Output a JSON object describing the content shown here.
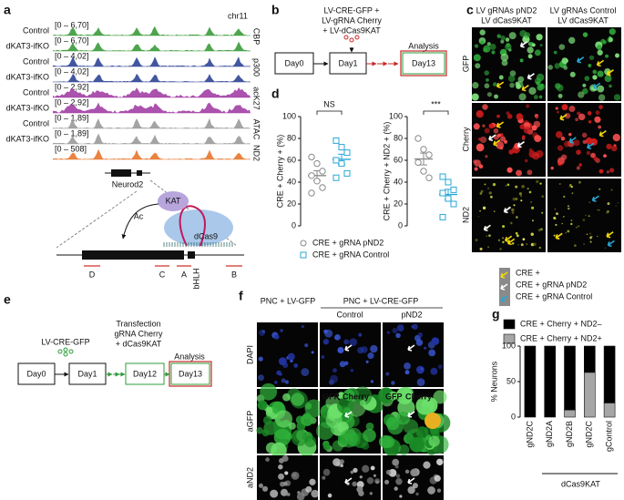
{
  "letters": [
    "a",
    "b",
    "c",
    "d",
    "e",
    "f",
    "g"
  ],
  "panel_a": {
    "region": "chr11",
    "tracks": [
      {
        "label": "Control",
        "range": "[0 – 6,70]"
      },
      {
        "label": "dKAT3-ifKO",
        "range": "[0 – 6,70]"
      },
      {
        "label": "Control",
        "range": "[0 – 4,02]"
      },
      {
        "label": "dKAT3-ifKO",
        "range": "[0 – 4,02]"
      },
      {
        "label": "Control",
        "range": "[0 – 2,92]"
      },
      {
        "label": "dKAT3-ifKO",
        "range": "[0 – 2,92]"
      },
      {
        "label": "Control",
        "range": "[0 – 1,89]"
      },
      {
        "label": "dKAT3-ifKO",
        "range": "[0 – 1,89]"
      },
      {
        "range": "[0 – 508]"
      }
    ],
    "marks": [
      "CBP",
      "p300",
      "acK27",
      "ATAC",
      "ND2"
    ],
    "gene": "Neurod2",
    "diagram": {
      "kat": "KAT",
      "ac": "Ac",
      "dcas9": "dCas9",
      "sites": [
        "D",
        "C",
        "A",
        "B"
      ],
      "domain": "bHLH"
    }
  },
  "panel_b": {
    "vectors": [
      "LV-CRE-GFP +",
      "LV-gRNA Cherry",
      "+ LV-dCas9KAT"
    ],
    "analysis": "Analysis",
    "days": [
      "Day0",
      "Day1",
      "Day13"
    ]
  },
  "panel_c": {
    "columns": [
      [
        "LV gRNAs pND2",
        "LV dCas9KAT"
      ],
      [
        "LV gRNAs Control",
        "LV dCas9KAT"
      ]
    ],
    "rows": [
      "GFP",
      "Cherry",
      "ND2"
    ],
    "legend": [
      "CRE +",
      "CRE + gRNA pND2",
      "CRE + gRNA Control"
    ]
  },
  "panel_e": {
    "vector": "LV-CRE-GFP",
    "transfection": [
      "Transfection",
      "gRNA Cherry",
      "+ dCas9KAT"
    ],
    "analysis": "Analysis",
    "days": [
      "Day0",
      "Day1",
      "Day12",
      "Day13"
    ]
  },
  "panel_f": {
    "groups": [
      "PNC + LV-GFP",
      "PNC + LV-CRE-GFP"
    ],
    "subgroups": [
      "Control",
      "pND2"
    ],
    "rows": [
      "DAPI",
      "aGFP",
      "aND2"
    ],
    "overlay": [
      "GFP",
      "Cherry"
    ]
  },
  "chart_data": [
    {
      "type": "strip",
      "ylabel": "CRE + Cherry + (%)",
      "annotation": "NS",
      "ylim": [
        0,
        100
      ],
      "yticks": [
        0,
        20,
        40,
        60,
        80,
        100
      ],
      "series": [
        {
          "name": "CRE + gRNA pND2",
          "color": "#8a8a8a",
          "marker": "circle",
          "values": [
            63,
            57,
            50,
            46,
            41,
            35,
            30
          ]
        },
        {
          "name": "CRE + gRNA Control",
          "color": "#2aa7d6",
          "marker": "square",
          "values": [
            78,
            72,
            67,
            60,
            57,
            48,
            44
          ]
        }
      ]
    },
    {
      "type": "strip",
      "ylabel": "CRE + Cherry + ND2 + (%)",
      "annotation": "***",
      "ylim": [
        0,
        100
      ],
      "yticks": [
        0,
        20,
        40,
        60,
        80,
        100
      ],
      "series": [
        {
          "color": "#8a8a8a",
          "marker": "circle",
          "values": [
            80,
            70,
            65,
            58,
            50,
            44
          ]
        },
        {
          "color": "#2aa7d6",
          "marker": "square",
          "values": [
            45,
            40,
            33,
            30,
            25,
            20,
            8
          ]
        }
      ]
    },
    {
      "type": "stacked_bar",
      "ylabel": "% Neurons",
      "group_label": "dCas9KAT",
      "categories": [
        "gND2C",
        "gND2A",
        "gND2B",
        "gND2C",
        "gControl"
      ],
      "ylim": [
        0,
        100
      ],
      "yticks": [
        0,
        50,
        100
      ],
      "series": [
        {
          "name": "CRE + Cherry + ND2–",
          "color": "#000000",
          "values": [
            100,
            100,
            90,
            37,
            80
          ]
        },
        {
          "name": "CRE + Cherry + ND2+",
          "color": "#a6a6a6",
          "values": [
            0,
            0,
            10,
            63,
            20
          ]
        }
      ]
    }
  ]
}
